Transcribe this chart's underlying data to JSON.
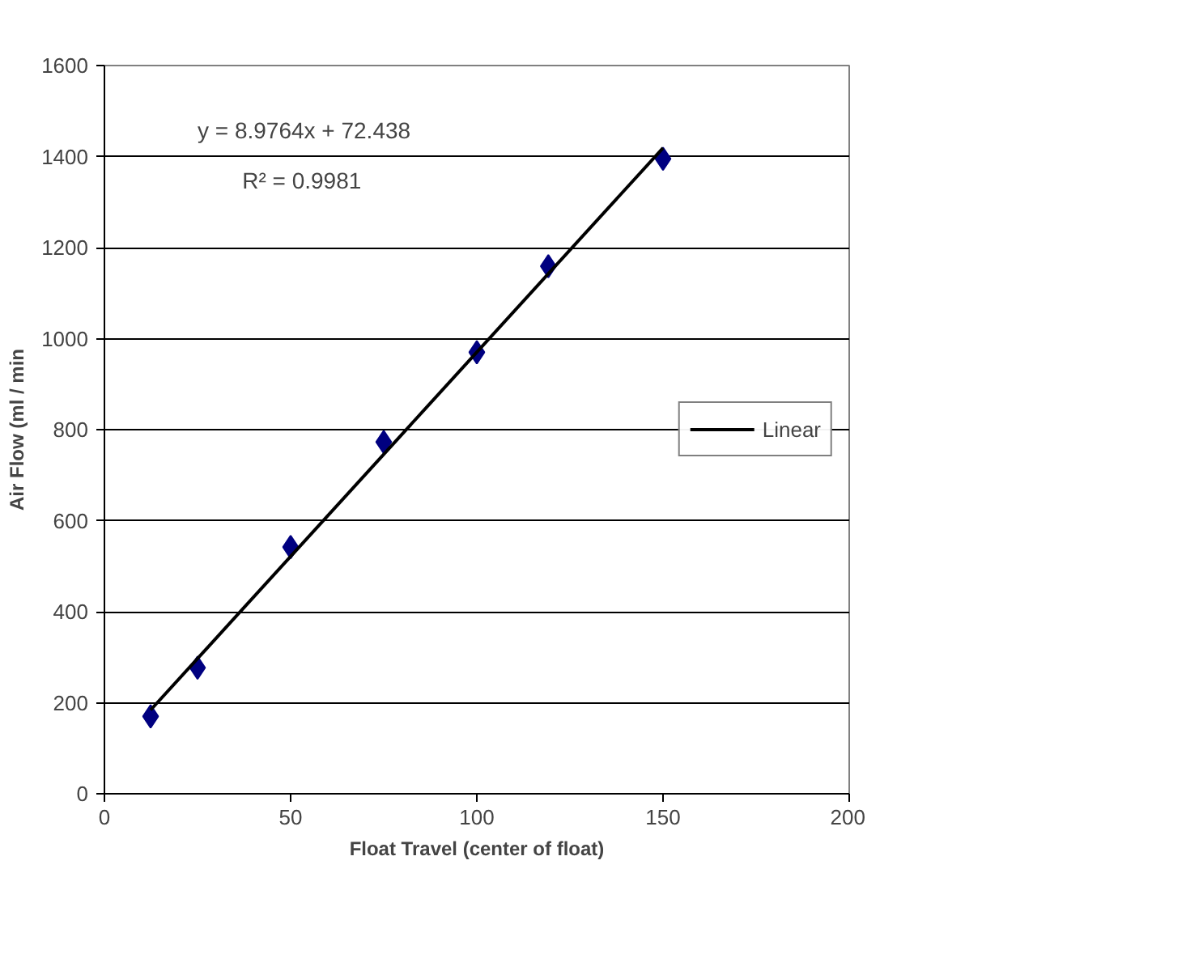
{
  "chart_data": {
    "type": "scatter",
    "xlabel": "Float Travel (center of float)",
    "ylabel": "Air Flow (ml / min",
    "x": [
      12.4,
      25,
      50,
      75,
      100,
      119.2,
      150
    ],
    "series": [
      {
        "color": "#000080",
        "values": [
          170,
          277,
          542,
          773,
          970,
          1159,
          1395
        ],
        "marker": "diamond"
      },
      {
        "type": "line",
        "name": "Linear",
        "color": "#000000",
        "x": [
          12.4,
          150
        ],
        "values": [
          184,
          1419
        ],
        "line_style": "solid",
        "marker": "none"
      }
    ],
    "annotations": [
      "y = 8.9764x + 72.438",
      "R² = 0.9981"
    ],
    "xlim": [
      0,
      200
    ],
    "ylim": [
      0,
      1600
    ],
    "xticks": [
      0,
      50,
      100,
      150,
      200
    ],
    "yticks": [
      0,
      200,
      400,
      600,
      800,
      1000,
      1200,
      1400,
      1600
    ],
    "grid": "y",
    "legend": "right"
  }
}
